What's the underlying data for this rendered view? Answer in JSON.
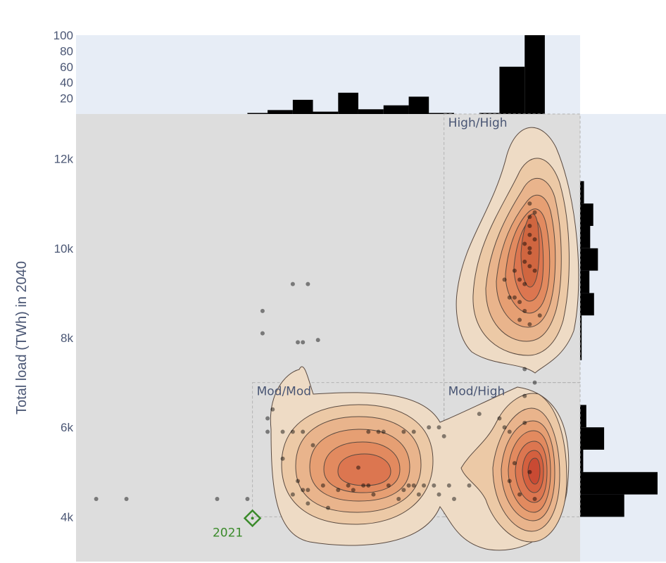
{
  "chart_data": {
    "type": "scatter",
    "ylabel": "Total load (TWh) in 2040",
    "xlabel": "",
    "ylim": [
      3000,
      13000
    ],
    "y_ticks": [
      {
        "value": 4000,
        "label": "4k"
      },
      {
        "value": 6000,
        "label": "6k"
      },
      {
        "value": 8000,
        "label": "8k"
      },
      {
        "value": 10000,
        "label": "10k"
      },
      {
        "value": 12000,
        "label": "12k"
      }
    ],
    "top_histogram": {
      "yrange": [
        0,
        100
      ],
      "ticks": [
        {
          "value": 20,
          "label": "20"
        },
        {
          "value": 40,
          "label": "40"
        },
        {
          "value": 60,
          "label": "60"
        },
        {
          "value": 80,
          "label": "80"
        },
        {
          "value": 100,
          "label": "100"
        }
      ],
      "bins": [
        {
          "range": [
            0.34,
            0.38
          ],
          "count": 1
        },
        {
          "range": [
            0.38,
            0.43
          ],
          "count": 5
        },
        {
          "range": [
            0.43,
            0.47
          ],
          "count": 18
        },
        {
          "range": [
            0.47,
            0.52
          ],
          "count": 3
        },
        {
          "range": [
            0.52,
            0.56
          ],
          "count": 27
        },
        {
          "range": [
            0.56,
            0.61
          ],
          "count": 6
        },
        {
          "range": [
            0.61,
            0.66
          ],
          "count": 11
        },
        {
          "range": [
            0.66,
            0.7
          ],
          "count": 22
        },
        {
          "range": [
            0.7,
            0.75
          ],
          "count": 1
        },
        {
          "range": [
            0.8,
            0.84
          ],
          "count": 1
        },
        {
          "range": [
            0.84,
            0.89
          ],
          "count": 60
        },
        {
          "range": [
            0.89,
            0.93
          ],
          "count": 100
        }
      ]
    },
    "right_histogram": {
      "xrange": [
        0,
        100
      ],
      "bins": [
        {
          "range": [
            4000,
            4500
          ],
          "count": 57
        },
        {
          "range": [
            4500,
            5000
          ],
          "count": 100
        },
        {
          "range": [
            5000,
            5500
          ],
          "count": 4
        },
        {
          "range": [
            5500,
            6000
          ],
          "count": 31
        },
        {
          "range": [
            6000,
            6500
          ],
          "count": 8
        },
        {
          "range": [
            6500,
            7500
          ],
          "count": 0
        },
        {
          "range": [
            7500,
            8000
          ],
          "count": 2
        },
        {
          "range": [
            8000,
            8500
          ],
          "count": 2
        },
        {
          "range": [
            8500,
            9000
          ],
          "count": 18
        },
        {
          "range": [
            9000,
            9500
          ],
          "count": 12
        },
        {
          "range": [
            9500,
            10000
          ],
          "count": 23
        },
        {
          "range": [
            10000,
            10500
          ],
          "count": 13
        },
        {
          "range": [
            10500,
            11000
          ],
          "count": 17
        },
        {
          "range": [
            11000,
            11500
          ],
          "count": 5
        }
      ]
    },
    "regions": [
      {
        "label": "Mod/Mod",
        "x": [
          0.35,
          0.73
        ],
        "y": [
          4000,
          7000
        ]
      },
      {
        "label": "Mod/High",
        "x": [
          0.73,
          1.0
        ],
        "y": [
          4000,
          7000
        ]
      },
      {
        "label": "High/High",
        "x": [
          0.73,
          1.0
        ],
        "y": [
          7000,
          13000
        ]
      }
    ],
    "reference_point": {
      "label": "2021",
      "x": 0.35,
      "y": 4000,
      "color": "#3a8a2a"
    },
    "points": [
      [
        0.04,
        4400
      ],
      [
        0.1,
        4400
      ],
      [
        0.28,
        4400
      ],
      [
        0.34,
        4400
      ],
      [
        0.37,
        8600
      ],
      [
        0.37,
        8100
      ],
      [
        0.43,
        9200
      ],
      [
        0.46,
        9200
      ],
      [
        0.44,
        7900
      ],
      [
        0.45,
        7900
      ],
      [
        0.48,
        7950
      ],
      [
        0.38,
        6200
      ],
      [
        0.38,
        5900
      ],
      [
        0.39,
        6400
      ],
      [
        0.41,
        5900
      ],
      [
        0.41,
        5300
      ],
      [
        0.43,
        5900
      ],
      [
        0.45,
        5900
      ],
      [
        0.47,
        5600
      ],
      [
        0.43,
        4500
      ],
      [
        0.44,
        4800
      ],
      [
        0.45,
        4600
      ],
      [
        0.46,
        4600
      ],
      [
        0.46,
        4300
      ],
      [
        0.49,
        4700
      ],
      [
        0.5,
        4200
      ],
      [
        0.52,
        4600
      ],
      [
        0.54,
        4700
      ],
      [
        0.55,
        4600
      ],
      [
        0.56,
        5100
      ],
      [
        0.57,
        4700
      ],
      [
        0.58,
        4700
      ],
      [
        0.58,
        5900
      ],
      [
        0.59,
        4500
      ],
      [
        0.6,
        5900
      ],
      [
        0.61,
        5900
      ],
      [
        0.62,
        4700
      ],
      [
        0.64,
        4400
      ],
      [
        0.65,
        4600
      ],
      [
        0.65,
        5900
      ],
      [
        0.66,
        4700
      ],
      [
        0.67,
        4700
      ],
      [
        0.67,
        5900
      ],
      [
        0.68,
        4500
      ],
      [
        0.69,
        4700
      ],
      [
        0.7,
        6000
      ],
      [
        0.71,
        4700
      ],
      [
        0.72,
        4500
      ],
      [
        0.72,
        6000
      ],
      [
        0.73,
        5800
      ],
      [
        0.74,
        4700
      ],
      [
        0.75,
        4400
      ],
      [
        0.78,
        4700
      ],
      [
        0.8,
        6300
      ],
      [
        0.84,
        6200
      ],
      [
        0.85,
        6000
      ],
      [
        0.86,
        4800
      ],
      [
        0.86,
        5900
      ],
      [
        0.87,
        5200
      ],
      [
        0.88,
        4500
      ],
      [
        0.89,
        6100
      ],
      [
        0.89,
        6700
      ],
      [
        0.89,
        7300
      ],
      [
        0.9,
        5000
      ],
      [
        0.91,
        4400
      ],
      [
        0.91,
        7000
      ],
      [
        0.85,
        9300
      ],
      [
        0.86,
        8900
      ],
      [
        0.87,
        8900
      ],
      [
        0.87,
        9500
      ],
      [
        0.88,
        9300
      ],
      [
        0.88,
        8800
      ],
      [
        0.89,
        9700
      ],
      [
        0.89,
        10100
      ],
      [
        0.89,
        9200
      ],
      [
        0.89,
        8600
      ],
      [
        0.9,
        10300
      ],
      [
        0.9,
        10700
      ],
      [
        0.9,
        11000
      ],
      [
        0.9,
        10500
      ],
      [
        0.9,
        9900
      ],
      [
        0.9,
        9600
      ],
      [
        0.9,
        10000
      ],
      [
        0.91,
        10800
      ],
      [
        0.91,
        9500
      ],
      [
        0.91,
        10200
      ],
      [
        0.88,
        8400
      ],
      [
        0.9,
        8300
      ],
      [
        0.92,
        8500
      ]
    ]
  }
}
